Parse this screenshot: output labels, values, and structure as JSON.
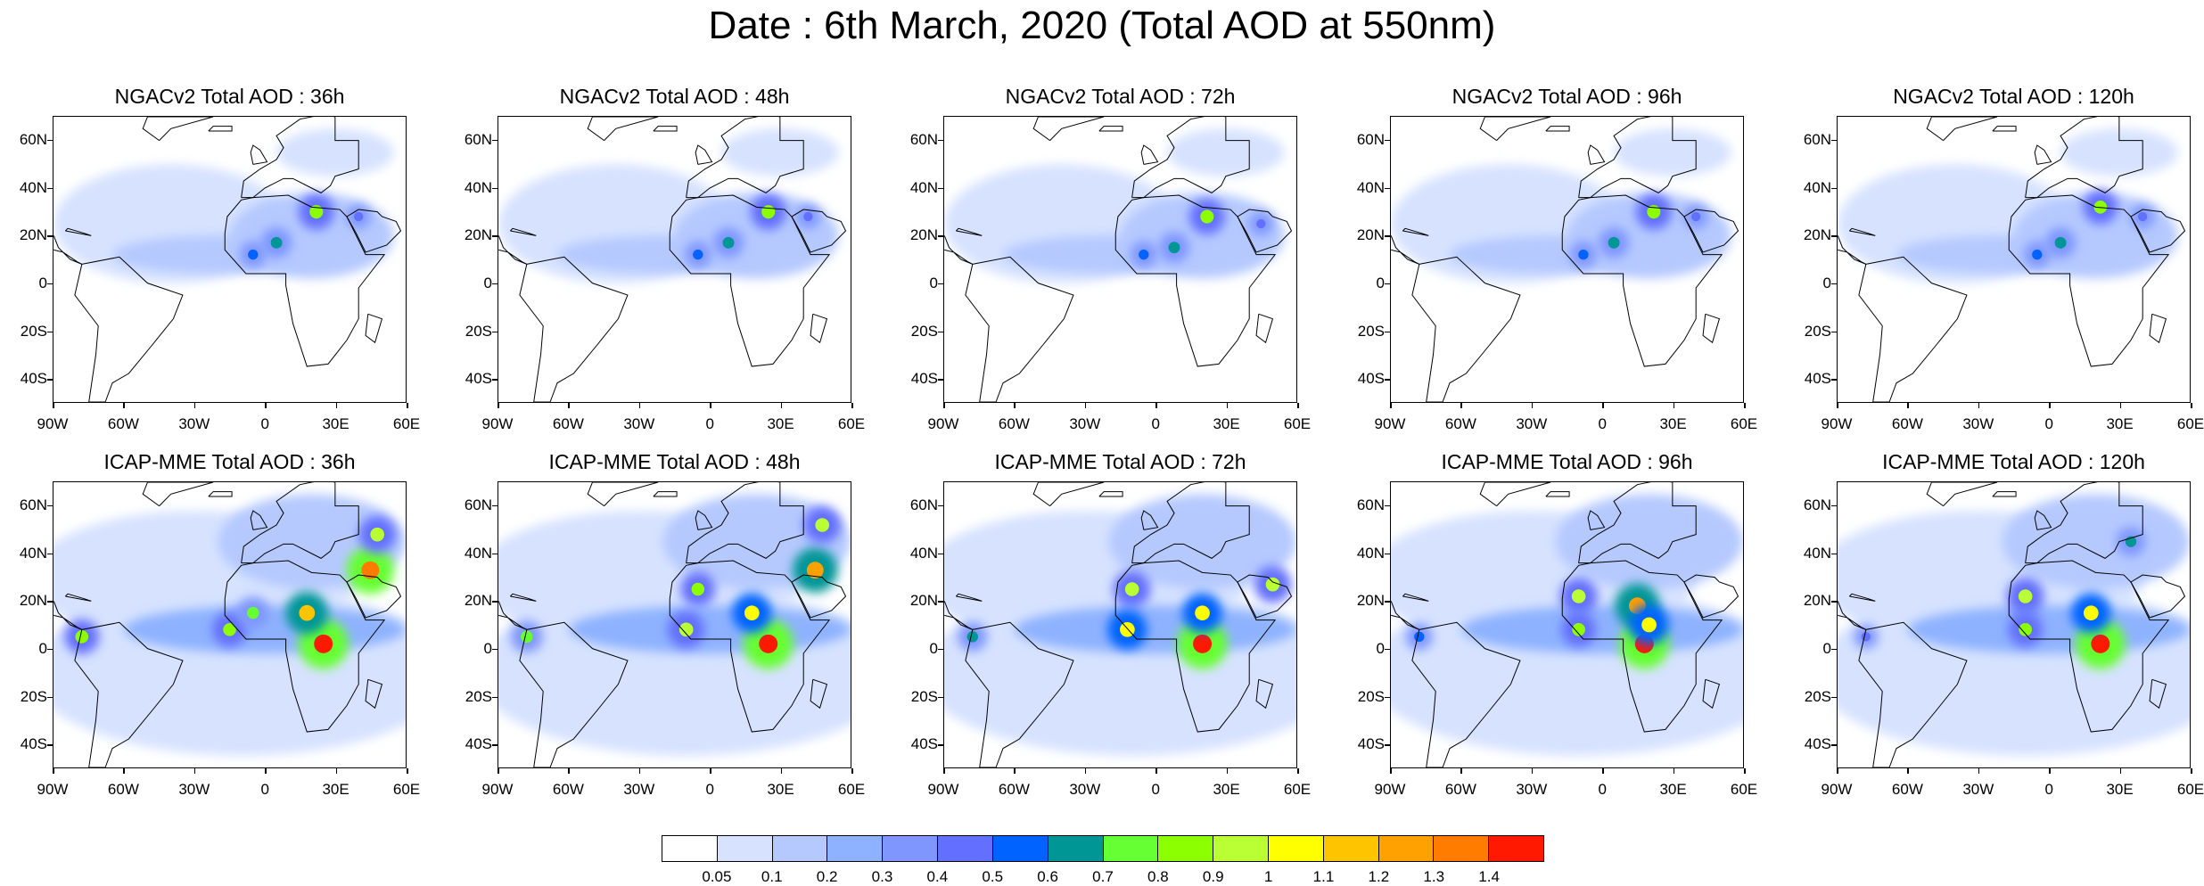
{
  "figure_title": "Date : 6th March, 2020 (Total AOD at 550nm)",
  "panels": [
    {
      "title": "NGACv2 Total AOD : 36h",
      "model": "NGACv2",
      "lead": "36h",
      "hotspots": [
        {
          "lon": 22,
          "lat": 30,
          "aod": 0.85
        },
        {
          "lon": 5,
          "lat": 17,
          "aod": 0.65
        },
        {
          "lon": -5,
          "lat": 12,
          "aod": 0.5
        },
        {
          "lon": 40,
          "lat": 28,
          "aod": 0.4
        }
      ]
    },
    {
      "title": "NGACv2 Total AOD : 48h",
      "model": "NGACv2",
      "lead": "48h",
      "hotspots": [
        {
          "lon": 25,
          "lat": 30,
          "aod": 0.85
        },
        {
          "lon": 8,
          "lat": 17,
          "aod": 0.65
        },
        {
          "lon": -5,
          "lat": 12,
          "aod": 0.5
        },
        {
          "lon": 42,
          "lat": 28,
          "aod": 0.4
        }
      ]
    },
    {
      "title": "NGACv2 Total AOD : 72h",
      "model": "NGACv2",
      "lead": "72h",
      "hotspots": [
        {
          "lon": 22,
          "lat": 28,
          "aod": 0.85
        },
        {
          "lon": 8,
          "lat": 15,
          "aod": 0.65
        },
        {
          "lon": -5,
          "lat": 12,
          "aod": 0.5
        },
        {
          "lon": 45,
          "lat": 25,
          "aod": 0.4
        }
      ]
    },
    {
      "title": "NGACv2 Total AOD : 96h",
      "model": "NGACv2",
      "lead": "96h",
      "hotspots": [
        {
          "lon": 22,
          "lat": 30,
          "aod": 0.85
        },
        {
          "lon": 5,
          "lat": 17,
          "aod": 0.65
        },
        {
          "lon": -8,
          "lat": 12,
          "aod": 0.5
        },
        {
          "lon": 40,
          "lat": 28,
          "aod": 0.4
        }
      ]
    },
    {
      "title": "NGACv2 Total AOD : 120h",
      "model": "NGACv2",
      "lead": "120h",
      "hotspots": [
        {
          "lon": 22,
          "lat": 32,
          "aod": 0.8
        },
        {
          "lon": 5,
          "lat": 17,
          "aod": 0.65
        },
        {
          "lon": -5,
          "lat": 12,
          "aod": 0.5
        },
        {
          "lon": 40,
          "lat": 28,
          "aod": 0.4
        }
      ]
    },
    {
      "title": "ICAP-MME Total AOD : 36h",
      "model": "ICAP-MME",
      "lead": "36h",
      "hotspots": [
        {
          "lon": 25,
          "lat": 2,
          "aod": 1.4
        },
        {
          "lon": 18,
          "lat": 15,
          "aod": 1.1
        },
        {
          "lon": 45,
          "lat": 33,
          "aod": 1.3
        },
        {
          "lon": 48,
          "lat": 48,
          "aod": 0.9
        },
        {
          "lon": -78,
          "lat": 5,
          "aod": 0.8
        },
        {
          "lon": -15,
          "lat": 8,
          "aod": 0.8
        },
        {
          "lon": -5,
          "lat": 15,
          "aod": 0.7
        }
      ]
    },
    {
      "title": "ICAP-MME Total AOD : 48h",
      "model": "ICAP-MME",
      "lead": "48h",
      "hotspots": [
        {
          "lon": 25,
          "lat": 2,
          "aod": 1.4
        },
        {
          "lon": 18,
          "lat": 15,
          "aod": 1.0
        },
        {
          "lon": 45,
          "lat": 33,
          "aod": 1.2
        },
        {
          "lon": 48,
          "lat": 52,
          "aod": 0.9
        },
        {
          "lon": -78,
          "lat": 5,
          "aod": 0.7
        },
        {
          "lon": -10,
          "lat": 8,
          "aod": 0.9
        },
        {
          "lon": -5,
          "lat": 25,
          "aod": 0.8
        }
      ]
    },
    {
      "title": "ICAP-MME Total AOD : 72h",
      "model": "ICAP-MME",
      "lead": "72h",
      "hotspots": [
        {
          "lon": 20,
          "lat": 2,
          "aod": 1.4
        },
        {
          "lon": 20,
          "lat": 15,
          "aod": 1.0
        },
        {
          "lon": 50,
          "lat": 27,
          "aod": 0.9
        },
        {
          "lon": -10,
          "lat": 25,
          "aod": 0.9
        },
        {
          "lon": -12,
          "lat": 8,
          "aod": 1.0
        },
        {
          "lon": -78,
          "lat": 5,
          "aod": 0.6
        }
      ]
    },
    {
      "title": "ICAP-MME Total AOD : 96h",
      "model": "ICAP-MME",
      "lead": "96h",
      "hotspots": [
        {
          "lon": 18,
          "lat": 2,
          "aod": 1.4
        },
        {
          "lon": 15,
          "lat": 18,
          "aod": 1.2
        },
        {
          "lon": -10,
          "lat": 22,
          "aod": 0.9
        },
        {
          "lon": -10,
          "lat": 8,
          "aod": 0.8
        },
        {
          "lon": 20,
          "lat": 10,
          "aod": 1.0
        },
        {
          "lon": -78,
          "lat": 5,
          "aod": 0.5
        }
      ]
    },
    {
      "title": "ICAP-MME Total AOD : 120h",
      "model": "ICAP-MME",
      "lead": "120h",
      "hotspots": [
        {
          "lon": 22,
          "lat": 2,
          "aod": 1.4
        },
        {
          "lon": 18,
          "lat": 15,
          "aod": 1.0
        },
        {
          "lon": -10,
          "lat": 22,
          "aod": 0.9
        },
        {
          "lon": -10,
          "lat": 8,
          "aod": 0.8
        },
        {
          "lon": 35,
          "lat": 45,
          "aod": 0.6
        },
        {
          "lon": -78,
          "lat": 5,
          "aod": 0.4
        }
      ]
    }
  ],
  "axes": {
    "lat_range": [
      -50,
      70
    ],
    "lon_range": [
      -90,
      60
    ],
    "lat_ticks": [
      {
        "value": 60,
        "label": "60N"
      },
      {
        "value": 40,
        "label": "40N"
      },
      {
        "value": 20,
        "label": "20N"
      },
      {
        "value": 0,
        "label": "0"
      },
      {
        "value": -20,
        "label": "20S"
      },
      {
        "value": -40,
        "label": "40S"
      }
    ],
    "lon_ticks": [
      {
        "value": -90,
        "label": "90W"
      },
      {
        "value": -60,
        "label": "60W"
      },
      {
        "value": -30,
        "label": "30W"
      },
      {
        "value": 0,
        "label": "0"
      },
      {
        "value": 30,
        "label": "30E"
      },
      {
        "value": 60,
        "label": "60E"
      }
    ]
  },
  "colorbar": {
    "colors": [
      "#ffffff",
      "#d6e2ff",
      "#b5c9ff",
      "#8eb2ff",
      "#7f96ff",
      "#6370ff",
      "#0063ff",
      "#009696",
      "#66ff33",
      "#8cff00",
      "#b9ff33",
      "#ffff00",
      "#ffc400",
      "#ffa100",
      "#ff7c00",
      "#ff1900"
    ],
    "levels": [
      0.05,
      0.1,
      0.2,
      0.3,
      0.4,
      0.5,
      0.6,
      0.7,
      0.8,
      0.9,
      1,
      1.1,
      1.2,
      1.3,
      1.4
    ],
    "labels": [
      "0.05",
      "0.1",
      "0.2",
      "0.3",
      "0.4",
      "0.5",
      "0.6",
      "0.7",
      "0.8",
      "0.9",
      "1",
      "1.1",
      "1.2",
      "1.3",
      "1.4"
    ]
  }
}
